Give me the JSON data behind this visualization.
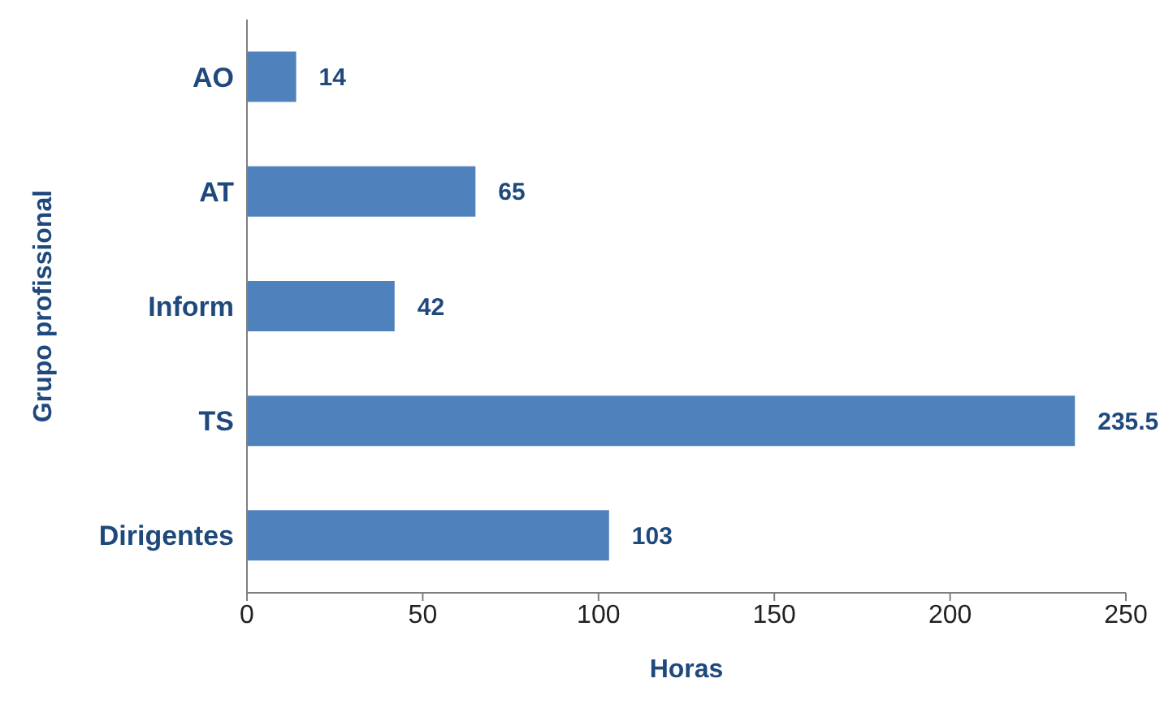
{
  "chart_data": {
    "type": "bar",
    "orientation": "horizontal",
    "xlabel": "Horas",
    "ylabel": "Grupo profissional",
    "categories": [
      "AO",
      "AT",
      "Inform",
      "TS",
      "Dirigentes"
    ],
    "values": [
      14,
      65,
      42,
      235.5,
      103
    ],
    "color": "#4f81bd",
    "xlim": [
      0,
      250
    ],
    "xticks": [
      0,
      50,
      100,
      150,
      200,
      250
    ],
    "grid": false,
    "data_labels": true
  }
}
